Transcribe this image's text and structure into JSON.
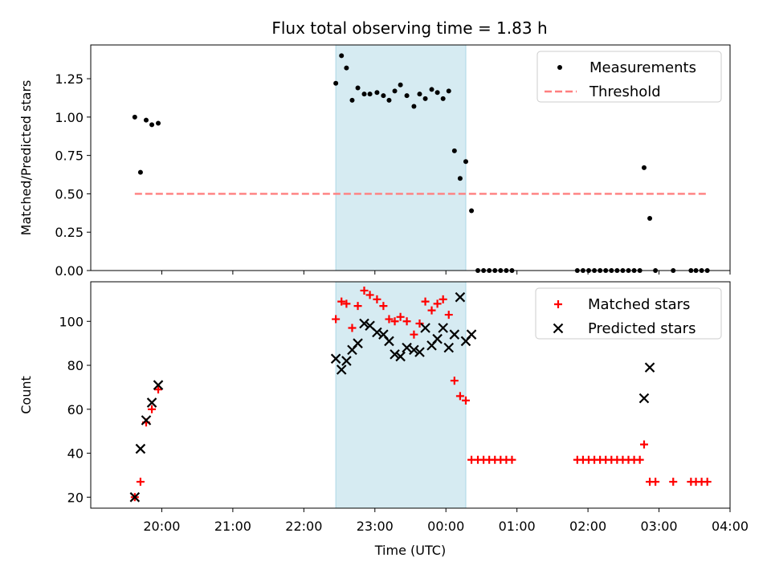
{
  "title": "Flux total observing time = 1.83 h",
  "chart_data": [
    {
      "type": "scatter",
      "panel": "top",
      "ylabel": "Matched/Predicted stars",
      "xlim_hours": [
        19.0,
        28.0
      ],
      "ylim": [
        0,
        1.47
      ],
      "yticks": [
        0.0,
        0.25,
        0.5,
        0.75,
        1.0,
        1.25
      ],
      "ytick_labels": [
        "0.00",
        "0.25",
        "0.50",
        "0.75",
        "1.00",
        "1.25"
      ],
      "legend_position": "top-right",
      "shaded_interval_hours": [
        22.45,
        24.28
      ],
      "shaded_color": "#add8e6",
      "series": [
        {
          "name": "Measurements",
          "marker": "dot",
          "color": "#000000",
          "points": [
            [
              19.62,
              1.0
            ],
            [
              19.7,
              0.64
            ],
            [
              19.78,
              0.98
            ],
            [
              19.86,
              0.95
            ],
            [
              19.95,
              0.96
            ],
            [
              22.45,
              1.22
            ],
            [
              22.53,
              1.4
            ],
            [
              22.6,
              1.32
            ],
            [
              22.68,
              1.11
            ],
            [
              22.76,
              1.19
            ],
            [
              22.85,
              1.15
            ],
            [
              22.93,
              1.15
            ],
            [
              23.03,
              1.16
            ],
            [
              23.12,
              1.14
            ],
            [
              23.2,
              1.11
            ],
            [
              23.28,
              1.17
            ],
            [
              23.36,
              1.21
            ],
            [
              23.45,
              1.14
            ],
            [
              23.55,
              1.07
            ],
            [
              23.63,
              1.15
            ],
            [
              23.71,
              1.12
            ],
            [
              23.8,
              1.18
            ],
            [
              23.88,
              1.16
            ],
            [
              23.96,
              1.12
            ],
            [
              24.04,
              1.17
            ],
            [
              24.12,
              0.78
            ],
            [
              24.2,
              0.6
            ],
            [
              24.28,
              0.71
            ],
            [
              24.36,
              0.39
            ],
            [
              24.45,
              0.0
            ],
            [
              24.53,
              0.0
            ],
            [
              24.61,
              0.0
            ],
            [
              24.69,
              0.0
            ],
            [
              24.77,
              0.0
            ],
            [
              24.85,
              0.0
            ],
            [
              24.93,
              0.0
            ],
            [
              25.85,
              0.0
            ],
            [
              25.93,
              0.0
            ],
            [
              26.01,
              0.0
            ],
            [
              26.09,
              0.0
            ],
            [
              26.17,
              0.0
            ],
            [
              26.25,
              0.0
            ],
            [
              26.33,
              0.0
            ],
            [
              26.41,
              0.0
            ],
            [
              26.49,
              0.0
            ],
            [
              26.57,
              0.0
            ],
            [
              26.65,
              0.0
            ],
            [
              26.73,
              0.0
            ],
            [
              26.79,
              0.67
            ],
            [
              26.87,
              0.34
            ],
            [
              26.95,
              0.0
            ],
            [
              27.2,
              0.0
            ],
            [
              27.45,
              0.0
            ],
            [
              27.52,
              0.0
            ],
            [
              27.6,
              0.0
            ],
            [
              27.68,
              0.0
            ]
          ]
        },
        {
          "name": "Threshold",
          "marker": "dashed-line",
          "color": "#ff7f7f",
          "points": [
            [
              19.62,
              0.5
            ],
            [
              27.68,
              0.5
            ]
          ]
        }
      ]
    },
    {
      "type": "scatter",
      "panel": "bottom",
      "xlabel": "Time (UTC)",
      "ylabel": "Count",
      "xlim_hours": [
        19.0,
        28.0
      ],
      "ylim": [
        15,
        118
      ],
      "yticks": [
        20,
        40,
        60,
        80,
        100
      ],
      "ytick_labels": [
        "20",
        "40",
        "60",
        "80",
        "100"
      ],
      "xticks_hours": [
        20,
        21,
        22,
        23,
        24,
        25,
        26,
        27,
        28
      ],
      "xtick_labels": [
        "20:00",
        "21:00",
        "22:00",
        "23:00",
        "00:00",
        "01:00",
        "02:00",
        "03:00",
        "04:00"
      ],
      "legend_position": "top-right",
      "shaded_interval_hours": [
        22.45,
        24.28
      ],
      "shaded_color": "#add8e6",
      "series": [
        {
          "name": "Matched stars",
          "marker": "plus",
          "color": "#ff0000",
          "points": [
            [
              19.62,
              20
            ],
            [
              19.7,
              27
            ],
            [
              19.78,
              54
            ],
            [
              19.86,
              60
            ],
            [
              19.95,
              69
            ],
            [
              22.45,
              101
            ],
            [
              22.53,
              109
            ],
            [
              22.6,
              108
            ],
            [
              22.68,
              97
            ],
            [
              22.76,
              107
            ],
            [
              22.85,
              114
            ],
            [
              22.93,
              112
            ],
            [
              23.03,
              110
            ],
            [
              23.12,
              107
            ],
            [
              23.2,
              101
            ],
            [
              23.28,
              100
            ],
            [
              23.36,
              102
            ],
            [
              23.45,
              100
            ],
            [
              23.55,
              94
            ],
            [
              23.63,
              99
            ],
            [
              23.71,
              109
            ],
            [
              23.8,
              105
            ],
            [
              23.88,
              108
            ],
            [
              23.96,
              110
            ],
            [
              24.04,
              103
            ],
            [
              24.12,
              73
            ],
            [
              24.2,
              66
            ],
            [
              24.28,
              64
            ],
            [
              24.36,
              37
            ],
            [
              24.45,
              37
            ],
            [
              24.53,
              37
            ],
            [
              24.61,
              37
            ],
            [
              24.69,
              37
            ],
            [
              24.77,
              37
            ],
            [
              24.85,
              37
            ],
            [
              24.93,
              37
            ],
            [
              25.85,
              37
            ],
            [
              25.93,
              37
            ],
            [
              26.01,
              37
            ],
            [
              26.09,
              37
            ],
            [
              26.17,
              37
            ],
            [
              26.25,
              37
            ],
            [
              26.33,
              37
            ],
            [
              26.41,
              37
            ],
            [
              26.49,
              37
            ],
            [
              26.57,
              37
            ],
            [
              26.65,
              37
            ],
            [
              26.73,
              37
            ],
            [
              26.79,
              44
            ],
            [
              26.87,
              27
            ],
            [
              26.95,
              27
            ],
            [
              27.2,
              27
            ],
            [
              27.45,
              27
            ],
            [
              27.52,
              27
            ],
            [
              27.6,
              27
            ],
            [
              27.68,
              27
            ]
          ]
        },
        {
          "name": "Predicted stars",
          "marker": "x",
          "color": "#000000",
          "points": [
            [
              19.62,
              20
            ],
            [
              19.7,
              42
            ],
            [
              19.78,
              55
            ],
            [
              19.86,
              63
            ],
            [
              19.95,
              71
            ],
            [
              22.45,
              83
            ],
            [
              22.53,
              78
            ],
            [
              22.6,
              82
            ],
            [
              22.68,
              87
            ],
            [
              22.76,
              90
            ],
            [
              22.85,
              99
            ],
            [
              22.93,
              98
            ],
            [
              23.03,
              95
            ],
            [
              23.12,
              94
            ],
            [
              23.2,
              91
            ],
            [
              23.28,
              85
            ],
            [
              23.36,
              84
            ],
            [
              23.45,
              88
            ],
            [
              23.55,
              87
            ],
            [
              23.63,
              86
            ],
            [
              23.71,
              97
            ],
            [
              23.8,
              89
            ],
            [
              23.88,
              92
            ],
            [
              23.96,
              97
            ],
            [
              24.04,
              88
            ],
            [
              24.12,
              94
            ],
            [
              24.2,
              111
            ],
            [
              24.28,
              91
            ],
            [
              24.36,
              94
            ],
            [
              26.79,
              65
            ],
            [
              26.87,
              79
            ]
          ]
        }
      ]
    }
  ]
}
